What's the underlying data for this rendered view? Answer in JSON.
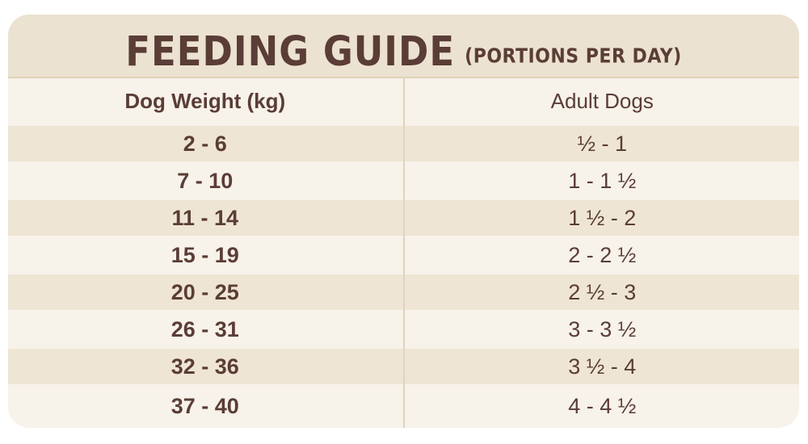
{
  "header": {
    "title": "FEEDING GUIDE",
    "subtitle": "(PORTIONS PER DAY)"
  },
  "table": {
    "columns": [
      "Dog Weight (kg)",
      "Adult Dogs"
    ],
    "rows": [
      [
        "2 - 6",
        "½ - 1"
      ],
      [
        "7 - 10",
        "1 - 1 ½"
      ],
      [
        "11 - 14",
        "1 ½ - 2"
      ],
      [
        "15 - 19",
        "2 - 2 ½"
      ],
      [
        "20 - 25",
        "2 ½ - 3"
      ],
      [
        "26 - 31",
        "3 - 3 ½"
      ],
      [
        "32 - 36",
        "3 ½ - 4"
      ],
      [
        "37 - 40",
        "4 - 4 ½"
      ]
    ]
  },
  "colors": {
    "text": "#5a3d36",
    "header_bg": "#ece2d1",
    "row_light": "#f7f2ea",
    "row_shaded": "#efe5d5"
  }
}
